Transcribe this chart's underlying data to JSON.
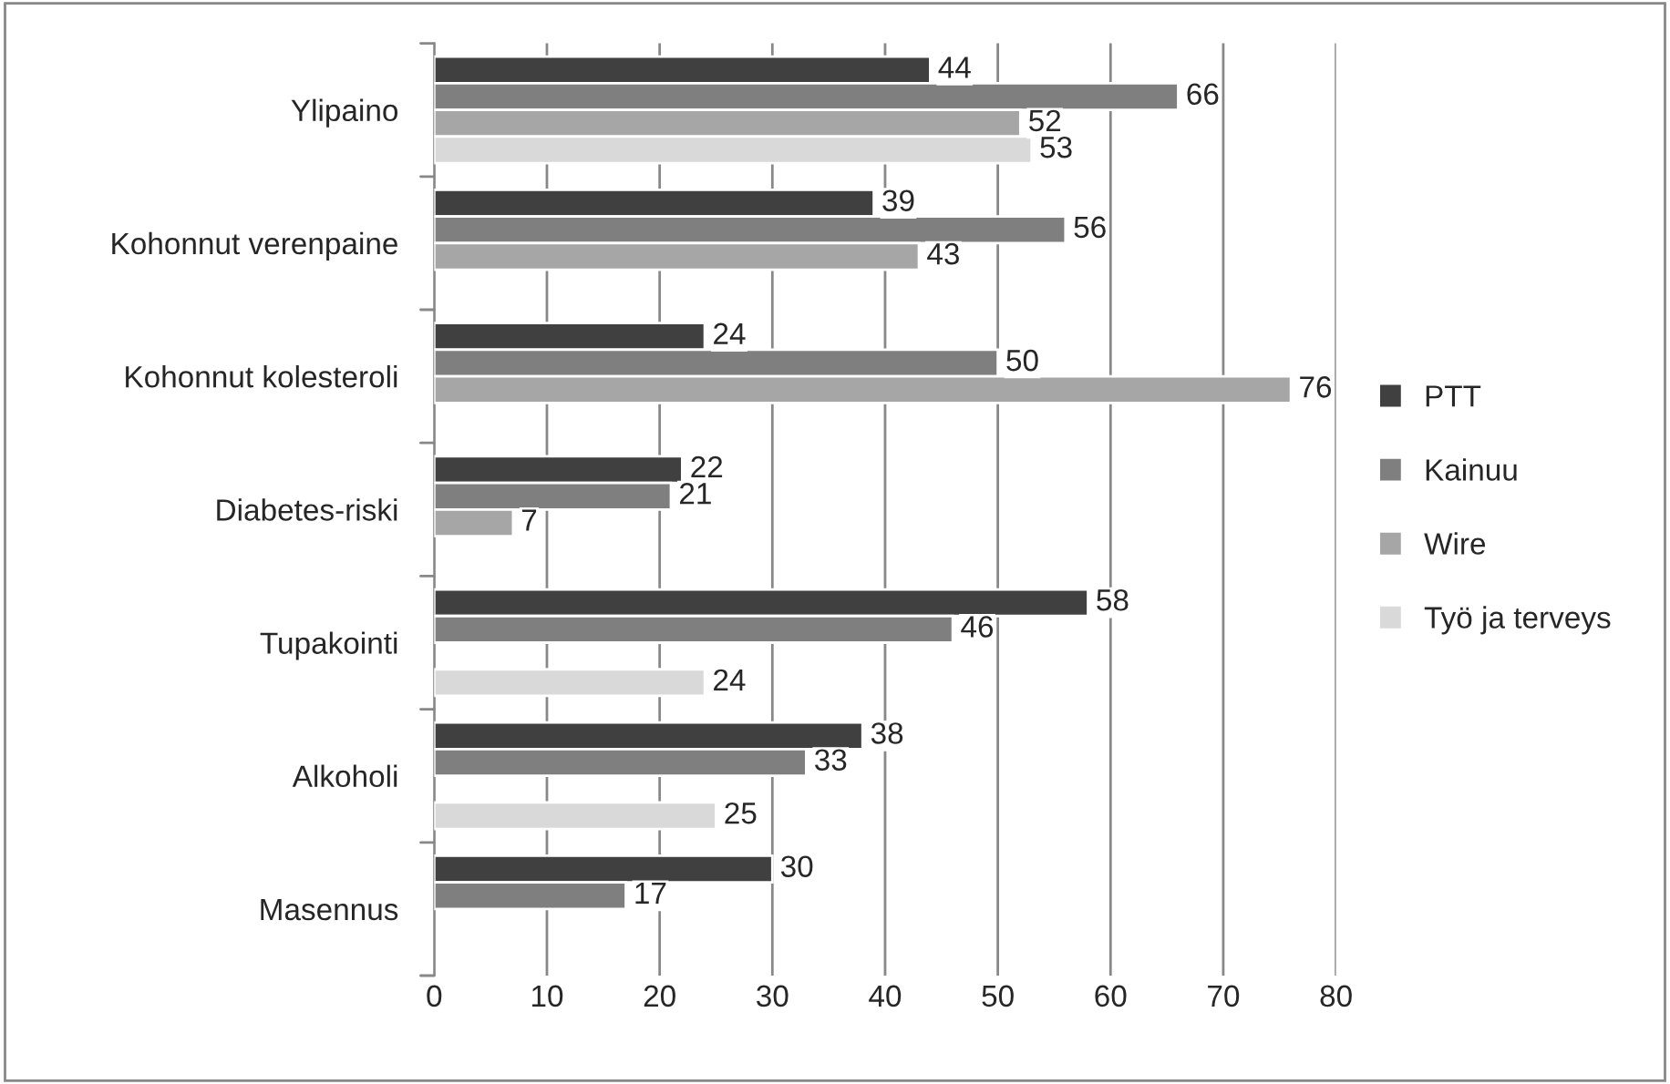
{
  "chart_data": {
    "type": "bar",
    "orientation": "horizontal",
    "categories": [
      "Ylipaino",
      "Kohonnut verenpaine",
      "Kohonnut kolesteroli",
      "Diabetes-riski",
      "Tupakointi",
      "Alkoholi",
      "Masennus"
    ],
    "series": [
      {
        "name": "PTT",
        "color": "#404040",
        "values": [
          44,
          39,
          24,
          22,
          58,
          38,
          30
        ]
      },
      {
        "name": "Kainuu",
        "color": "#7f7f7f",
        "values": [
          66,
          56,
          50,
          21,
          46,
          33,
          17
        ]
      },
      {
        "name": "Wire",
        "color": "#a6a6a6",
        "values": [
          52,
          43,
          76,
          7,
          null,
          null,
          null
        ]
      },
      {
        "name": "Työ ja terveys",
        "color": "#d9d9d9",
        "values": [
          53,
          null,
          null,
          null,
          24,
          25,
          null
        ]
      }
    ],
    "xlim": [
      0,
      80
    ],
    "xticks": [
      0,
      10,
      20,
      30,
      40,
      50,
      60,
      70,
      80
    ],
    "grid": "x",
    "legend": "right",
    "data_labels": true
  }
}
